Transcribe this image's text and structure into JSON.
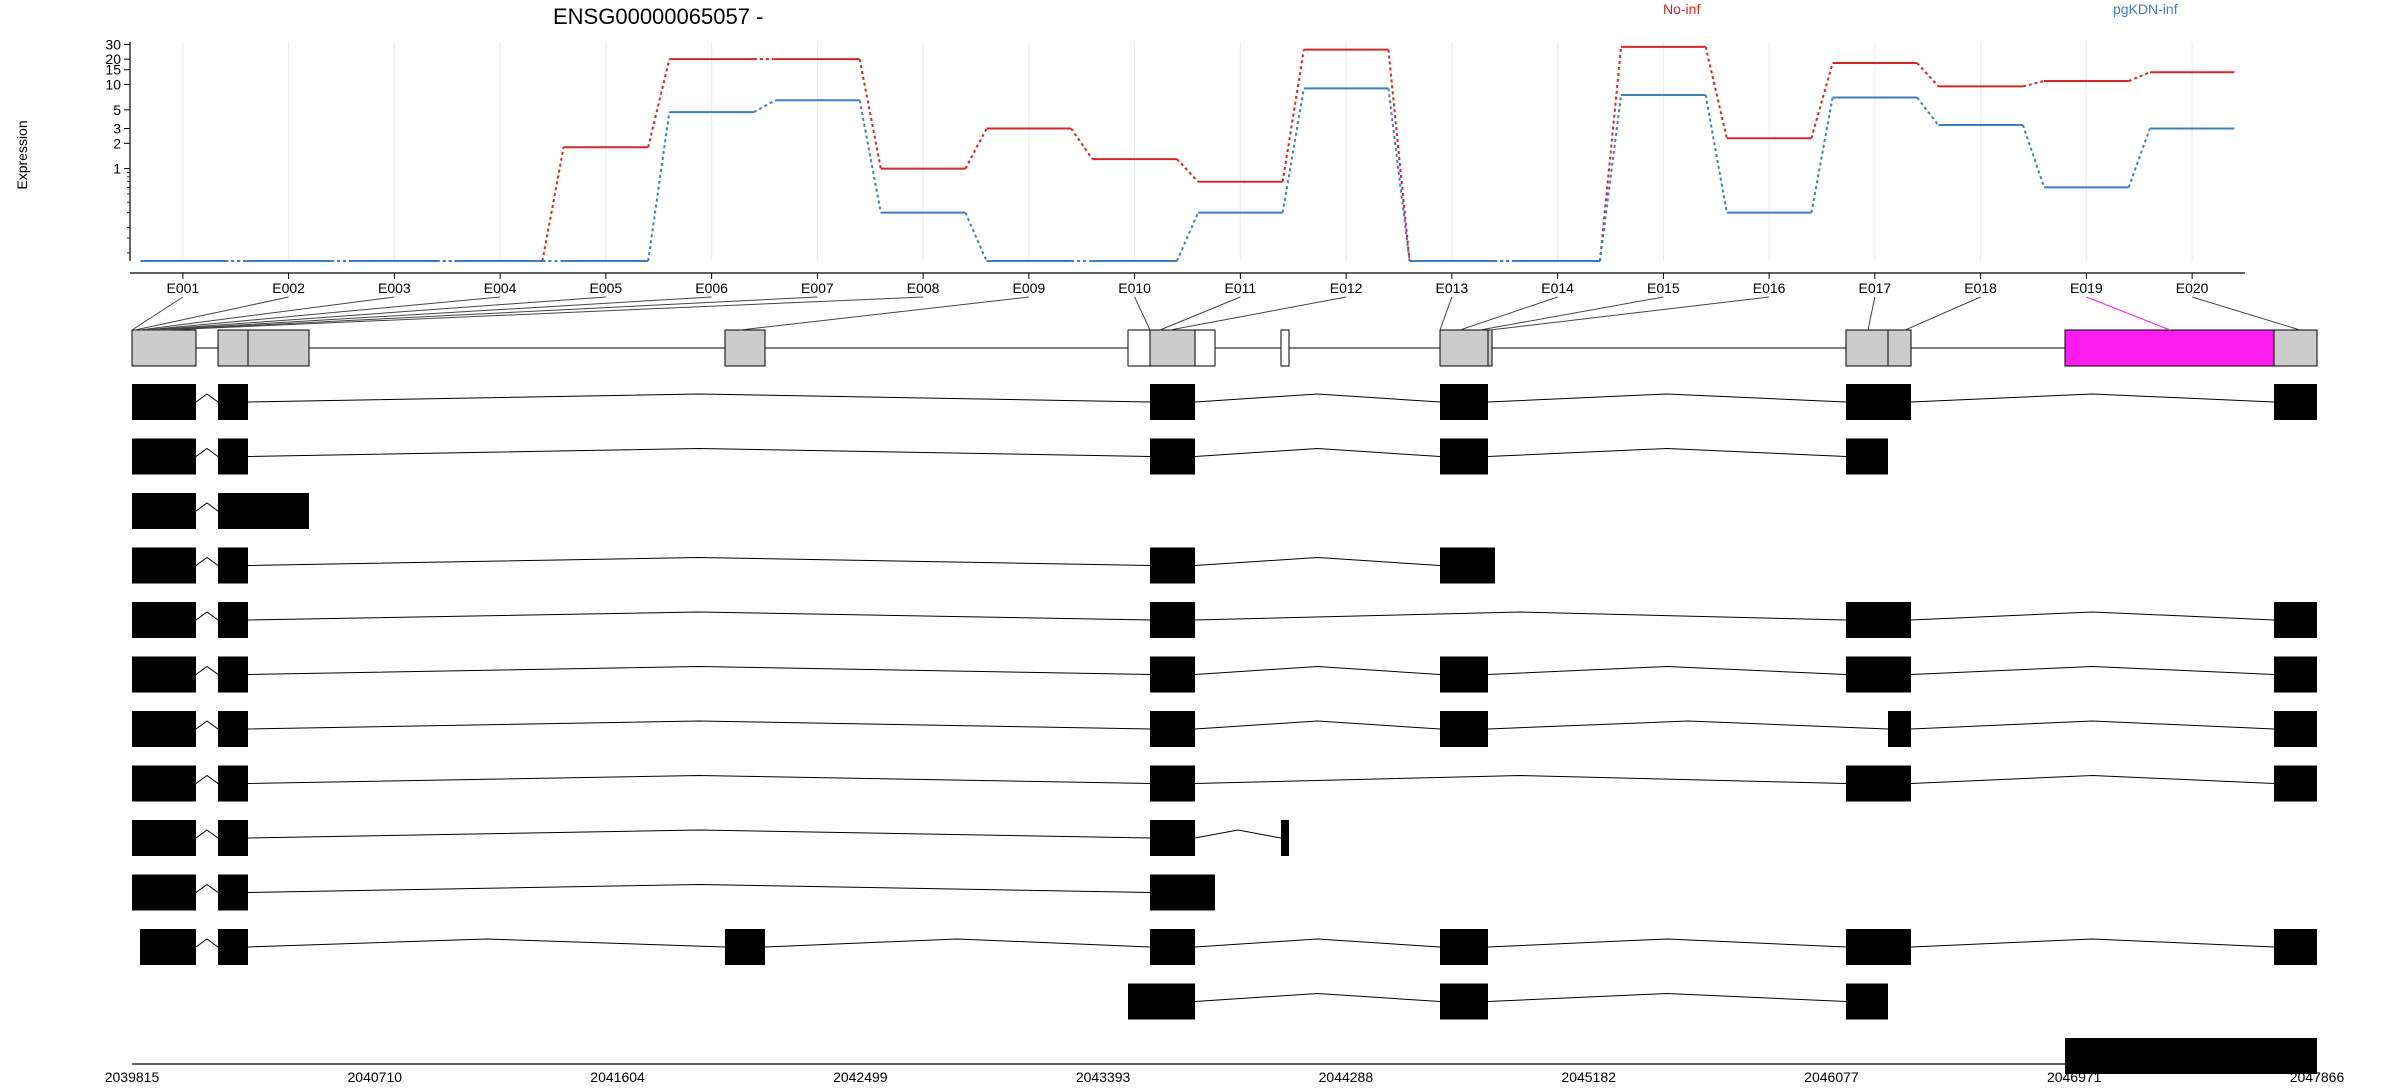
{
  "chart_data": {
    "type": "line",
    "title": "ENSG00000065057 -",
    "ylabel": "Expression",
    "y_scale": "log",
    "yticks": [
      1,
      2,
      3,
      5,
      10,
      15,
      20,
      30
    ],
    "categories": [
      "E001",
      "E002",
      "E003",
      "E004",
      "E005",
      "E006",
      "E007",
      "E008",
      "E009",
      "E010",
      "E011",
      "E012",
      "E013",
      "E014",
      "E015",
      "E016",
      "E017",
      "E018",
      "E019",
      "E020"
    ],
    "legend_position": "top",
    "series": [
      {
        "name": "No-inf",
        "color": "#d62728",
        "values": [
          0.08,
          0.08,
          0.08,
          0.08,
          1.8,
          20,
          20,
          1.0,
          3.0,
          1.3,
          0.7,
          26,
          0.08,
          0.08,
          28,
          2.3,
          18,
          9.5,
          11,
          14
        ]
      },
      {
        "name": "pgKDN-inf",
        "color": "#3f7fbf",
        "values": [
          0.08,
          0.08,
          0.08,
          0.08,
          0.08,
          4.7,
          6.5,
          0.3,
          0.08,
          0.08,
          0.3,
          9.0,
          0.08,
          0.08,
          7.5,
          0.3,
          7.0,
          3.3,
          0.6,
          3.0
        ]
      }
    ],
    "genome_coordinates": [
      "2039815",
      "2040710",
      "2041604",
      "2042499",
      "2043393",
      "2044288",
      "2045182",
      "2046077",
      "2046971",
      "2047866"
    ],
    "highlighted_exon": "E019",
    "colors": {
      "gene_model_exon": "#cccccc",
      "highlight_exon": "#ff1cf0",
      "transcript_exon": "#000000"
    }
  }
}
